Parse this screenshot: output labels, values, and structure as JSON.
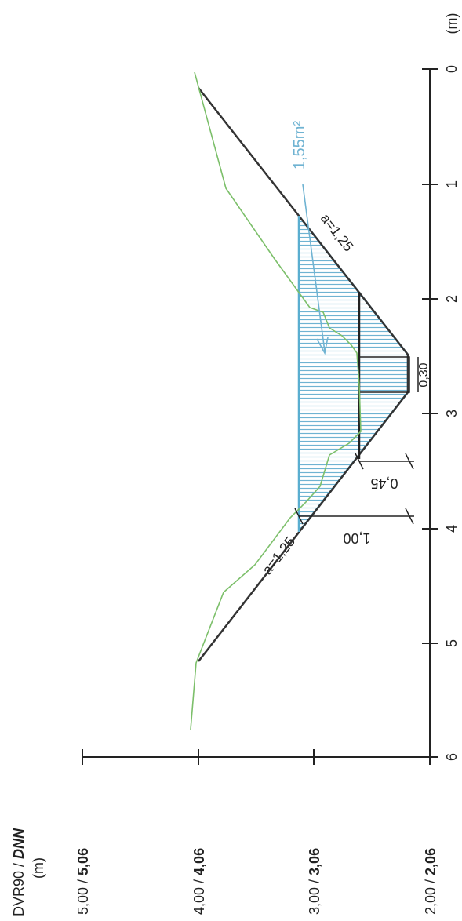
{
  "axis_title": {
    "left": "DVR90 /",
    "right": "DNN"
  },
  "axis_unit": "(m)",
  "distance_unit": "(m)",
  "distance_ticks": [
    "0",
    "1",
    "2",
    "3",
    "4",
    "5",
    "6"
  ],
  "elevation_labels": [
    {
      "dvr": "2,00 /",
      "dnn": "2,06"
    },
    {
      "dvr": "3,00 /",
      "dnn": "3,06"
    },
    {
      "dvr": "4,00 /",
      "dnn": "4,06"
    },
    {
      "dvr": "5,00 /",
      "dnn": "5,06"
    }
  ],
  "area_label": "1,55m²",
  "slope_labels": [
    "a=1,25",
    "a=1,25"
  ],
  "dimensions": {
    "bottom_width": "0,30",
    "inner_depth": "0,45",
    "total_depth": "1,00"
  }
}
